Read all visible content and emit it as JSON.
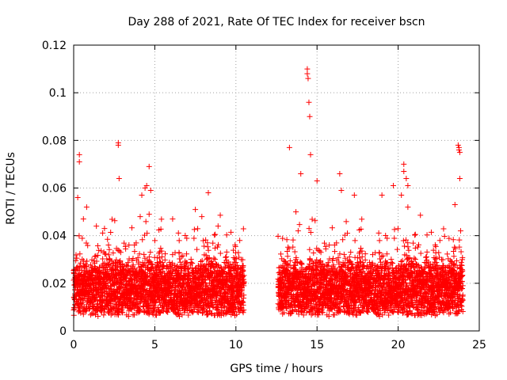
{
  "chart_data": {
    "type": "scatter",
    "title": "Day 288 of 2021, Rate Of TEC Index for receiver bscn",
    "xlabel": "GPS time / hours",
    "ylabel": "ROTI / TECUs",
    "xlim": [
      0,
      25
    ],
    "ylim": [
      0,
      0.12
    ],
    "xticks": [
      0,
      5,
      10,
      15,
      20,
      25
    ],
    "yticks": [
      0,
      0.02,
      0.04,
      0.06,
      0.08,
      0.1,
      0.12
    ],
    "xtick_labels": [
      "0",
      "5",
      "10",
      "15",
      "20",
      "25"
    ],
    "ytick_labels": [
      "0",
      "0.02",
      "0.04",
      "0.06",
      "0.08",
      "0.1",
      "0.12"
    ],
    "grid": true,
    "marker": "+",
    "color": "#ff0000",
    "data_gap_hours": [
      10.5,
      12.6
    ],
    "series": [
      {
        "x": [
          0.25,
          0.35,
          0.35,
          0.6,
          0.8,
          1.4,
          1.9,
          2.75,
          2.75,
          2.8,
          4.1,
          4.2,
          4.4,
          4.5,
          4.65,
          4.65,
          4.75,
          6.1,
          7.5,
          7.9,
          8.3,
          8.9,
          13.3,
          13.7,
          14.0,
          14.4,
          14.4,
          14.45,
          14.5,
          14.55,
          14.6,
          15.0,
          16.4,
          16.5,
          17.3,
          19.0,
          19.7,
          20.2,
          20.35,
          20.35,
          20.5,
          20.6,
          20.6,
          23.5,
          23.7,
          23.75,
          23.75,
          23.8,
          23.8,
          23.85
        ],
        "y": [
          0.056,
          0.074,
          0.071,
          0.047,
          0.052,
          0.044,
          0.043,
          0.079,
          0.078,
          0.064,
          0.048,
          0.057,
          0.06,
          0.061,
          0.069,
          0.049,
          0.059,
          0.047,
          0.051,
          0.048,
          0.058,
          0.044,
          0.077,
          0.05,
          0.066,
          0.11,
          0.108,
          0.106,
          0.096,
          0.09,
          0.074,
          0.063,
          0.066,
          0.059,
          0.057,
          0.057,
          0.061,
          0.057,
          0.07,
          0.067,
          0.064,
          0.061,
          0.052,
          0.053,
          0.078,
          0.077,
          0.076,
          0.075,
          0.064,
          0.042
        ]
      }
    ],
    "note_dense": "Dense band of ROTI values mostly between 0.01 and 0.03 TECU/s from 0 to 10.5 h and from 12.6 to 24 h"
  }
}
